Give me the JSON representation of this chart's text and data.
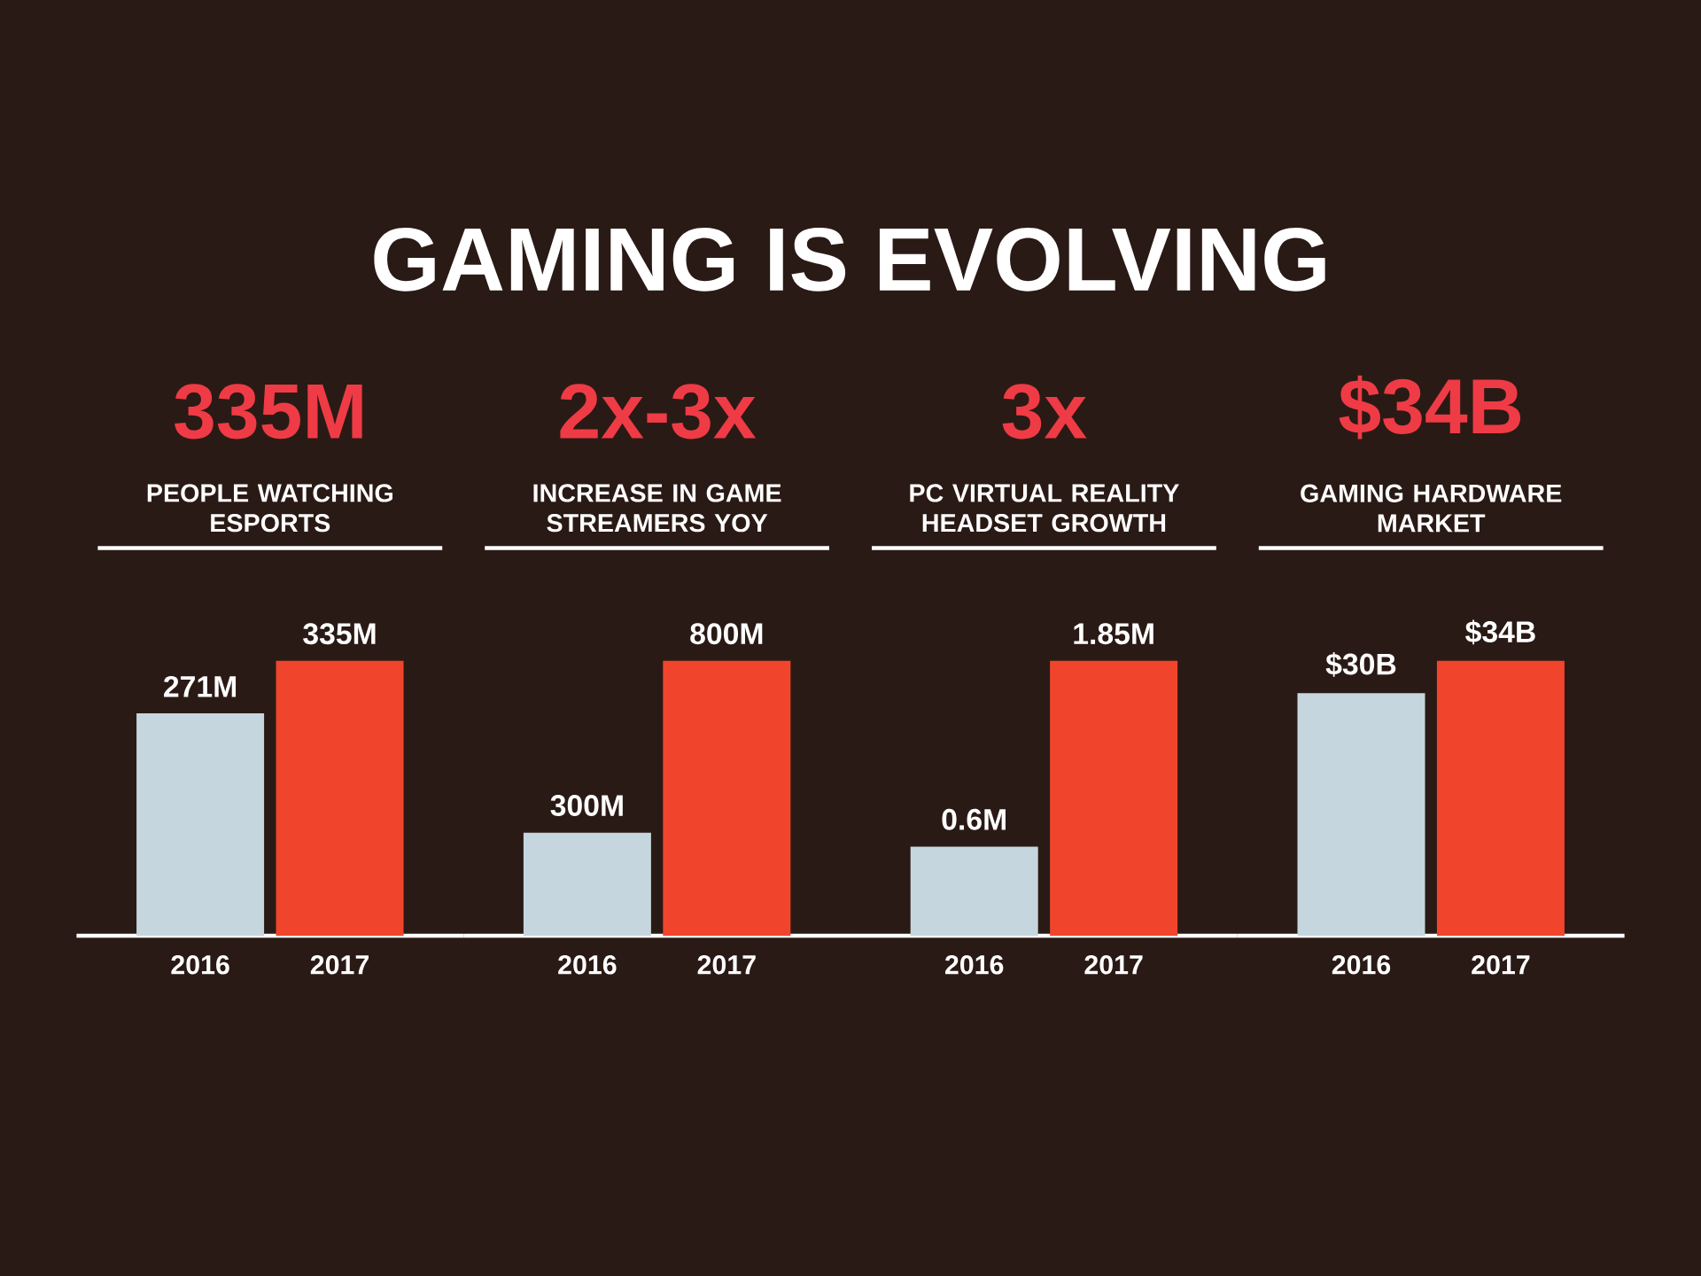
{
  "chart_data": [
    {
      "type": "other",
      "title": "GAMING IS EVOLVING"
    },
    {
      "type": "bar",
      "title": "335M",
      "subtitle": "PEOPLE WATCHING ESPORTS",
      "categories": [
        "2016",
        "2017"
      ],
      "values": [
        271,
        335
      ],
      "colors": [
        "#c6d6de",
        "#f0452c"
      ],
      "value_labels": [
        "271M",
        "335M"
      ]
    },
    {
      "type": "bar",
      "title": "2x-3x",
      "subtitle": "INCREASE IN GAME STREAMERS YOY",
      "categories": [
        "2016",
        "2017"
      ],
      "values": [
        300,
        800
      ],
      "colors": [
        "#c6d6de",
        "#f0452c"
      ],
      "value_labels": [
        "300M",
        "800M"
      ]
    },
    {
      "type": "bar",
      "title": "3x",
      "subtitle": "PC VIRTUAL REALITY HEADSET GROWTH",
      "categories": [
        "2016",
        "2017"
      ],
      "values": [
        0.6,
        1.85
      ],
      "colors": [
        "#c6d6de",
        "#f0452c"
      ],
      "value_labels": [
        "0.6M",
        "1.85M"
      ]
    },
    {
      "type": "bar",
      "title": "$34B",
      "subtitle": "GAMING HARDWARE MARKET",
      "categories": [
        "2016",
        "2017"
      ],
      "values": [
        30,
        34
      ],
      "colors": [
        "#c6d6de",
        "#f0452c"
      ],
      "value_labels": [
        "$30B",
        "$34B"
      ]
    }
  ]
}
